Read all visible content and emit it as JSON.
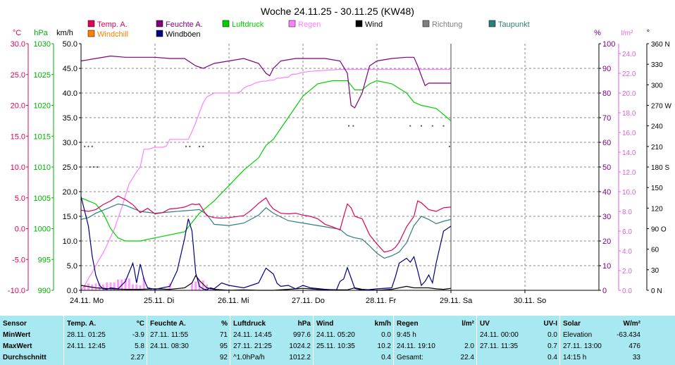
{
  "chart_data": {
    "type": "line",
    "title": "Woche 24.11.25 - 30.11.25 (KW48)",
    "legend": [
      {
        "name": "Temp. A.",
        "color": "#e0005a"
      },
      {
        "name": "Feuchte A.",
        "color": "#800080"
      },
      {
        "name": "Luftdruck",
        "color": "#00d000"
      },
      {
        "name": "Regen",
        "color": "#ff80ff"
      },
      {
        "name": "Wind",
        "color": "#000000"
      },
      {
        "name": "Richtung",
        "color": "#808080"
      },
      {
        "name": "Taupunkt",
        "color": "#2e7d7d"
      },
      {
        "name": "Windchill",
        "color": "#ff8000"
      },
      {
        "name": "Windböen",
        "color": "#000080"
      }
    ],
    "axes": {
      "temp": {
        "unit": "°C",
        "color": "#e0005a",
        "ticks": [
          "30.0",
          "25.0",
          "20.0",
          "15.0",
          "10.0",
          "5.0",
          "0.0",
          "-5.0",
          "-10.0"
        ]
      },
      "pressure": {
        "unit": "hPa",
        "color": "#00b000",
        "ticks": [
          "1030",
          "1025",
          "1020",
          "1015",
          "1010",
          "1005",
          "1000",
          "995",
          "990"
        ]
      },
      "wind": {
        "unit": "km/h",
        "color": "#000000",
        "ticks": [
          "50.0",
          "45.0",
          "40.0",
          "35.0",
          "30.0",
          "25.0",
          "20.0",
          "15.0",
          "10.0",
          "5.0",
          "0.0"
        ]
      },
      "humidity": {
        "unit": "%",
        "color": "#800080",
        "ticks": [
          "100",
          "90",
          "80",
          "70",
          "60",
          "50",
          "40",
          "30",
          "20",
          "10",
          "0"
        ]
      },
      "rain": {
        "unit": "l/m²",
        "color": "#e060e0",
        "ticks": [
          "24.0",
          "22.0",
          "20.0",
          "18.0",
          "16.0",
          "14.0",
          "12.0",
          "10.0",
          "8.0",
          "6.0",
          "4.0",
          "2.0",
          "0.0"
        ]
      },
      "direction": {
        "unit": "°",
        "color": "#000000",
        "ticks": [
          "360 N",
          "330",
          "300",
          "270 W",
          "240",
          "210",
          "180 S",
          "150",
          "120",
          "90 O",
          "60",
          "30",
          "0 N"
        ]
      }
    },
    "x_labels": [
      "24.11. Mo",
      "25.11. Di",
      "26.11. Mi",
      "27.11. Do",
      "28.11. Fr",
      "29.11. Sa",
      "30.11. So"
    ],
    "x_range_days": [
      0,
      7
    ],
    "data_end_day": 5,
    "series": [
      {
        "name": "Feuchte A.",
        "axis": "humidity",
        "color": "#800080",
        "x": [
          0,
          0.1,
          0.2,
          0.4,
          0.6,
          0.8,
          1.0,
          1.2,
          1.4,
          1.55,
          1.65,
          1.8,
          2.0,
          2.2,
          2.4,
          2.5,
          2.55,
          2.6,
          2.7,
          2.9,
          3.1,
          3.3,
          3.5,
          3.6,
          3.65,
          3.7,
          3.8,
          3.9,
          4.0,
          4.2,
          4.4,
          4.5,
          4.55,
          4.6,
          4.65,
          4.7,
          4.8,
          4.9,
          5.0
        ],
        "y": [
          93,
          93.5,
          94,
          95,
          94.5,
          94.5,
          94.5,
          94,
          94,
          91,
          90,
          92,
          93,
          94,
          92,
          88,
          87,
          90,
          93,
          94,
          94,
          94,
          93,
          88,
          75,
          74,
          80,
          91,
          93,
          94,
          94.5,
          94.5,
          91,
          87,
          83,
          84,
          84,
          84,
          84
        ]
      },
      {
        "name": "Luftdruck",
        "axis": "pressure",
        "values_unit": "hPa",
        "x": [
          0,
          0.1,
          0.2,
          0.3,
          0.4,
          0.5,
          0.6,
          0.8,
          1.0,
          1.2,
          1.4,
          1.5,
          1.6,
          1.7,
          1.8,
          2.0,
          2.2,
          2.4,
          2.5,
          2.6,
          2.8,
          3.0,
          3.2,
          3.4,
          3.6,
          3.7,
          3.8,
          3.9,
          4.0,
          4.2,
          4.4,
          4.5,
          4.6,
          4.8,
          4.9,
          5.0
        ],
        "y": [
          1005,
          1004.5,
          1004,
          1002.5,
          1000,
          998.5,
          998,
          998,
          998.5,
          999,
          999.5,
          1001,
          1002.5,
          1003.5,
          1004.5,
          1007,
          1009.5,
          1011.5,
          1013.5,
          1014.5,
          1018,
          1021.5,
          1023.5,
          1024,
          1024,
          1022.5,
          1022.5,
          1023.5,
          1024,
          1023.5,
          1022,
          1020.5,
          1020,
          1019.5,
          1018.5,
          1017.5
        ]
      },
      {
        "name": "Regen",
        "axis": "rain",
        "values_unit": "l/m²",
        "x": [
          0,
          0.05,
          0.1,
          0.15,
          0.2,
          0.25,
          0.3,
          0.35,
          0.4,
          0.45,
          0.5,
          0.55,
          0.6,
          0.65,
          0.7,
          0.75,
          0.8,
          0.85,
          0.9,
          0.95,
          1.0,
          1.05,
          1.1,
          1.15,
          1.2,
          1.25,
          1.3,
          1.35,
          1.4,
          1.45,
          1.5,
          1.55,
          1.6,
          1.65,
          1.7,
          1.75,
          1.8,
          1.85,
          1.9,
          1.95,
          2.0,
          2.05,
          2.1,
          2.15,
          2.2,
          2.25,
          2.3,
          2.35,
          2.4,
          2.45,
          2.5,
          2.55,
          2.6,
          2.65,
          2.7,
          2.75,
          2.8,
          2.85,
          2.9,
          2.95,
          3.0,
          3.1,
          3.5,
          4.0,
          4.5,
          5.0
        ],
        "y": [
          0,
          0.5,
          1.2,
          1.8,
          2.5,
          3.2,
          3.8,
          4.6,
          5.4,
          6.2,
          7.3,
          8.4,
          9.6,
          10.8,
          11.4,
          12.0,
          12.5,
          14.3,
          14.3,
          14.4,
          14.5,
          14.5,
          14.5,
          14.6,
          15.3,
          15.3,
          15.3,
          15.3,
          15.3,
          15.3,
          16.1,
          17.0,
          18.0,
          19.0,
          19.6,
          19.8,
          20.0,
          20.0,
          20.0,
          20.0,
          20.0,
          20.0,
          20.0,
          20.1,
          20.5,
          20.7,
          20.8,
          21.0,
          21.1,
          21.2,
          21.2,
          21.3,
          21.3,
          21.5,
          21.5,
          21.6,
          21.6,
          21.9,
          21.9,
          22.0,
          22.1,
          22.2,
          22.4,
          22.4,
          22.4,
          22.4
        ]
      },
      {
        "name": "Temp. A.",
        "axis": "temp",
        "values_unit": "°C",
        "x": [
          0,
          0.1,
          0.2,
          0.3,
          0.4,
          0.5,
          0.6,
          0.7,
          0.8,
          0.9,
          1.0,
          1.1,
          1.2,
          1.3,
          1.4,
          1.5,
          1.55,
          1.6,
          1.7,
          1.8,
          1.9,
          2.0,
          2.2,
          2.3,
          2.4,
          2.5,
          2.55,
          2.6,
          2.7,
          2.8,
          2.9,
          3.0,
          3.1,
          3.2,
          3.3,
          3.4,
          3.5,
          3.55,
          3.6,
          3.65,
          3.7,
          3.8,
          3.9,
          4.0,
          4.1,
          4.2,
          4.25,
          4.3,
          4.4,
          4.5,
          4.55,
          4.6,
          4.7,
          4.8,
          4.9,
          5.0
        ],
        "y": [
          3.0,
          2.8,
          3.1,
          3.9,
          4.5,
          5.3,
          4.7,
          3.9,
          2.6,
          3.3,
          2.4,
          2.6,
          3.2,
          3.3,
          3.5,
          4.0,
          3.9,
          4.0,
          2.1,
          1.8,
          1.7,
          1.8,
          2.1,
          3.0,
          4.1,
          5.0,
          3.9,
          3.2,
          2.5,
          2.4,
          2.5,
          2.2,
          2.0,
          1.6,
          0.7,
          0.3,
          -0.2,
          2.0,
          4.0,
          3.4,
          2.0,
          1.6,
          -1.0,
          -2.5,
          -3.8,
          -3.5,
          -3.0,
          -2.2,
          0.3,
          2.0,
          4.5,
          4.2,
          3.1,
          2.8,
          3.4,
          3.5
        ]
      },
      {
        "name": "Taupunkt",
        "axis": "temp",
        "values_unit": "°C",
        "x": [
          0,
          0.1,
          0.2,
          0.3,
          0.4,
          0.5,
          0.6,
          0.8,
          1.0,
          1.2,
          1.4,
          1.5,
          1.6,
          1.7,
          1.8,
          2.0,
          2.2,
          2.4,
          2.5,
          2.6,
          2.8,
          3.0,
          3.2,
          3.4,
          3.5,
          3.6,
          3.7,
          3.8,
          3.9,
          4.0,
          4.1,
          4.2,
          4.3,
          4.4,
          4.5,
          4.6,
          4.7,
          4.8,
          4.9,
          5.0
        ],
        "y": [
          1.5,
          1.8,
          2.5,
          3.0,
          3.5,
          4.0,
          3.8,
          2.8,
          2.5,
          2.7,
          2.9,
          3.0,
          3.1,
          2.3,
          0.7,
          0.5,
          0.9,
          2.2,
          3.4,
          2.5,
          1.3,
          0.9,
          0.5,
          0.1,
          -0.1,
          -1.1,
          -1.5,
          -1.7,
          -2.8,
          -4.0,
          -4.8,
          -4.4,
          -3.8,
          -2.3,
          0.5,
          2.0,
          1.5,
          0.8,
          1.2,
          1.5
        ]
      },
      {
        "name": "Wind",
        "axis": "wind",
        "values_unit": "km/h",
        "x": [
          0,
          0.2,
          0.4,
          0.6,
          0.8,
          1.0,
          1.2,
          1.4,
          1.5,
          1.55,
          1.6,
          1.7,
          1.8,
          2.0,
          2.2,
          2.4,
          2.6,
          2.8,
          3.0,
          3.2,
          3.5,
          3.6,
          3.7,
          3.8,
          4.0,
          4.2,
          4.3,
          4.4,
          4.5,
          4.6,
          4.7,
          4.8,
          4.9,
          5.0
        ],
        "y": [
          1,
          0.5,
          0.3,
          0.2,
          0.2,
          0.3,
          0.2,
          0.5,
          1.5,
          3.0,
          2.0,
          0.5,
          0.2,
          0,
          0.1,
          0,
          0,
          0.2,
          0.4,
          0.2,
          0.1,
          0.1,
          0.5,
          0.2,
          0,
          0.2,
          0.5,
          0.8,
          0.5,
          0.5,
          0.5,
          0.3,
          0.2,
          0.4
        ]
      },
      {
        "name": "Windböen",
        "axis": "wind",
        "values_unit": "km/h",
        "x": [
          0,
          0.05,
          0.1,
          0.15,
          0.2,
          0.25,
          0.3,
          0.35,
          0.4,
          0.5,
          0.6,
          0.7,
          0.72,
          0.75,
          0.8,
          0.82,
          0.85,
          0.9,
          1.0,
          1.2,
          1.3,
          1.4,
          1.45,
          1.5,
          1.55,
          1.6,
          1.65,
          1.7,
          1.75,
          1.8,
          1.9,
          2.0,
          2.2,
          2.4,
          2.5,
          2.6,
          2.65,
          2.7,
          2.8,
          2.9,
          3.0,
          3.1,
          3.3,
          3.45,
          3.5,
          3.55,
          3.6,
          3.65,
          3.7,
          3.75,
          3.8,
          4.0,
          4.2,
          4.25,
          4.3,
          4.4,
          4.45,
          4.5,
          4.55,
          4.6,
          4.65,
          4.7,
          4.75,
          4.8,
          4.9,
          5.0
        ],
        "y": [
          19,
          16,
          13,
          7,
          3,
          1,
          0.3,
          0.2,
          0.5,
          0.3,
          1.8,
          5.5,
          4.2,
          1.5,
          5.3,
          4.2,
          2.2,
          0.5,
          0.2,
          0.8,
          4.0,
          10.5,
          14.5,
          12,
          3.5,
          0.8,
          0.3,
          0.1,
          0.5,
          0.3,
          1.5,
          1.0,
          0.5,
          1.5,
          4.5,
          3.3,
          1.4,
          0.8,
          1.0,
          0.3,
          1.0,
          0.5,
          0.2,
          0,
          1.8,
          2.3,
          4.6,
          2.5,
          0.4,
          0.2,
          0,
          0.3,
          0.5,
          2.8,
          5.5,
          6.5,
          5.7,
          6.8,
          4.0,
          1.0,
          1.8,
          3.1,
          1.5,
          5.5,
          12.0,
          13.0
        ]
      }
    ],
    "wind_direction": [
      {
        "x": [
          0.05,
          0.1,
          0.15
        ],
        "y": [
          210,
          210,
          210
        ]
      },
      {
        "x": [
          0.12,
          0.17,
          0.22
        ],
        "y": [
          180,
          180,
          180
        ]
      },
      {
        "x": [
          1.42,
          1.47,
          1.6,
          1.65
        ],
        "y": [
          210,
          210,
          210,
          210
        ]
      },
      {
        "x": [
          3.62,
          3.68
        ],
        "y": [
          240,
          240
        ]
      },
      {
        "x": [
          4.45,
          4.6,
          4.75,
          4.9
        ],
        "y": [
          240,
          240,
          240,
          240
        ]
      },
      {
        "x": [
          4.98
        ],
        "y": [
          210
        ]
      }
    ]
  },
  "stats": {
    "sensor": {
      "label": "Sensor",
      "rows": [
        "MinWert",
        "MaxWert",
        "Durchschnitt"
      ]
    },
    "sections": [
      {
        "key": "temp",
        "title": "Temp. A.",
        "unit": "°C",
        "rows": [
          {
            "time": "28.11.  01:25",
            "value": "-3.9"
          },
          {
            "time": "24.11.  12:45",
            "value": "5.8"
          },
          {
            "time": "",
            "value": "2.27"
          }
        ]
      },
      {
        "key": "feuchte",
        "title": "Feuchte A.",
        "unit": "%",
        "rows": [
          {
            "time": "27.11.  11:55",
            "value": "71"
          },
          {
            "time": "24.11.  08:30",
            "value": "95"
          },
          {
            "time": "",
            "value": "92"
          }
        ]
      },
      {
        "key": "luftdruck",
        "title": "Luftdruck",
        "unit": "hPa",
        "rows": [
          {
            "time": "24.11.  14:45",
            "value": "997.6"
          },
          {
            "time": "27.11.  21:25",
            "value": "1024.2"
          },
          {
            "time": "^1.0hPa/h",
            "value": "1012.2"
          }
        ]
      },
      {
        "key": "wind",
        "title": "Wind",
        "unit": "km/h",
        "rows": [
          {
            "time": "24.11.  05:20",
            "value": "0.0"
          },
          {
            "time": "25.11.  10:35",
            "value": "10.2"
          },
          {
            "time": "",
            "value": "0.4"
          }
        ]
      },
      {
        "key": "regen",
        "title": "Regen",
        "unit": "l/m²",
        "rows": [
          {
            "time": "9:45 h",
            "value": ""
          },
          {
            "time": "24.11.  19:10",
            "value": "2.0"
          },
          {
            "time": "Gesamt:",
            "value": "22.4"
          }
        ]
      },
      {
        "key": "uv",
        "title": "UV",
        "unit": "UV-I",
        "rows": [
          {
            "time": "24.11.  00:00",
            "value": "0.0"
          },
          {
            "time": "27.11.  11:35",
            "value": "0.7"
          },
          {
            "time": "",
            "value": "0.4"
          }
        ]
      },
      {
        "key": "solar",
        "title": "Solar",
        "unit": "W/m²",
        "rows": [
          {
            "time": "Elevation",
            "value": "-63.434"
          },
          {
            "time": "27.11.  13:00",
            "value": "476"
          },
          {
            "time": "14:15 h",
            "value": "33"
          }
        ]
      }
    ]
  }
}
